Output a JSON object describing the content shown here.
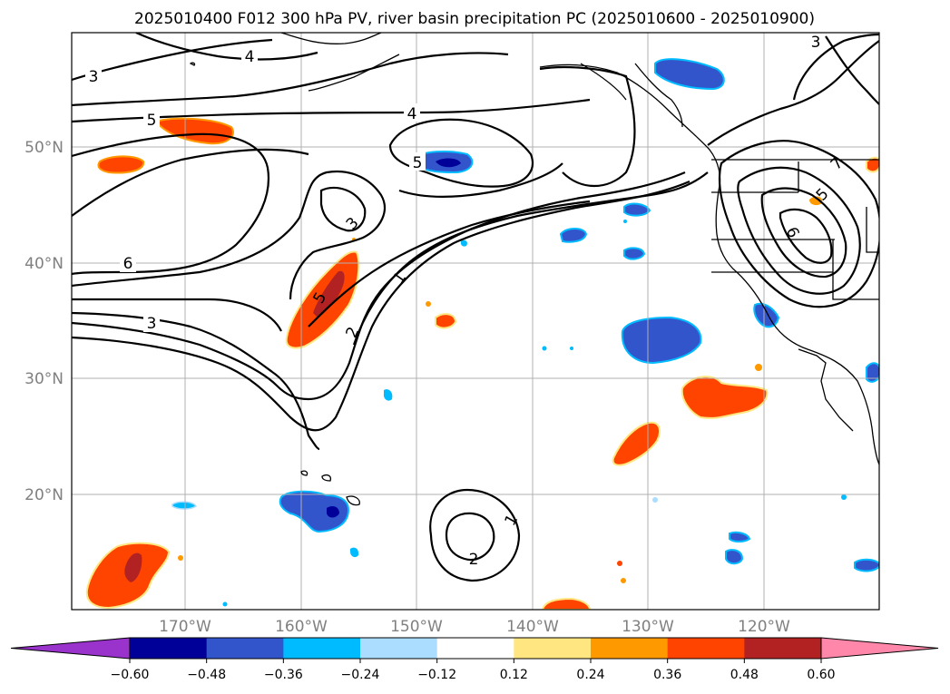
{
  "title": "2025010400 F012 300 hPa PV, river basin precipitation PC (2025010600 - 2025010900)",
  "lat_labels": [
    "50°N",
    "40°N",
    "30°N",
    "20°N"
  ],
  "lon_labels": [
    "170°W",
    "160°W",
    "150°W",
    "140°W",
    "130°W",
    "120°W"
  ],
  "contour_labels": [
    "3",
    "4",
    "5",
    "4",
    "3",
    "5",
    "6",
    "3",
    "3",
    "5",
    "1",
    "2",
    "1",
    "2",
    "5",
    "6",
    "7"
  ],
  "colorbar": {
    "tick_labels": [
      "−0.60",
      "−0.48",
      "−0.36",
      "−0.24",
      "−0.12",
      "0.12",
      "0.24",
      "0.36",
      "0.48",
      "0.60"
    ],
    "levels": [
      -0.6,
      -0.48,
      -0.36,
      -0.24,
      -0.12,
      0.12,
      0.24,
      0.36,
      0.48,
      0.6
    ],
    "colors": [
      "#9933cc",
      "#000099",
      "#3355cc",
      "#00bbff",
      "#aaddff",
      "#ffffff",
      "#ffe680",
      "#ff9900",
      "#ff4400",
      "#b22222",
      "#ff88aa"
    ]
  },
  "colors": {
    "neg_dark": "#000099",
    "neg_mid": "#3355cc",
    "neg_light": "#00bbff",
    "pos_light": "#ffe680",
    "pos_mid": "#ff9900",
    "pos_strong": "#ff4400",
    "pos_dark": "#b22222",
    "grid": "#b0b0b0",
    "axis_text": "#808080"
  }
}
